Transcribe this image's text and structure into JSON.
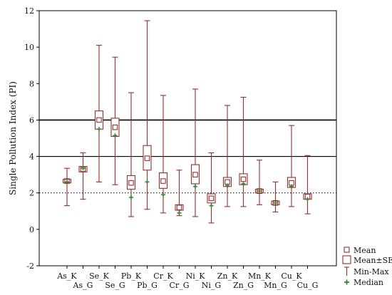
{
  "chart_data": {
    "type": "boxplot",
    "title": "",
    "xlabel": "",
    "ylabel": "Single Pollution Index (PI)",
    "ylim": [
      -2,
      12
    ],
    "yticks": [
      "-2",
      "0",
      "2",
      "4",
      "6",
      "8",
      "10",
      "12"
    ],
    "yticks_values": [
      -2,
      0,
      2,
      4,
      6,
      8,
      10,
      12
    ],
    "grid": false,
    "legend_position": "bottom-right",
    "reference_lines": [
      {
        "value": 2,
        "style": "dotted"
      },
      {
        "value": 4,
        "style": "solid"
      },
      {
        "value": 6,
        "style": "solid-bold"
      }
    ],
    "categories": [
      "As_K",
      "As_G",
      "Se_K",
      "Se_G",
      "Pb_K",
      "Pb_G",
      "Cr_K",
      "Cr_G",
      "Ni_K",
      "Ni_G",
      "Zn_K",
      "Zn_G",
      "Mn_K",
      "Mn_G",
      "Cu_K",
      "Cu_G"
    ],
    "mean": [
      2.65,
      3.3,
      6.0,
      5.6,
      2.55,
      3.9,
      2.65,
      1.2,
      3.0,
      1.7,
      2.6,
      2.75,
      2.1,
      1.45,
      2.55,
      1.8
    ],
    "se_low": [
      2.55,
      3.15,
      5.5,
      5.1,
      2.2,
      3.25,
      2.25,
      1.05,
      2.5,
      1.45,
      2.35,
      2.45,
      2.0,
      1.35,
      2.3,
      1.65
    ],
    "se_high": [
      2.75,
      3.45,
      6.5,
      6.1,
      2.95,
      4.6,
      3.1,
      1.35,
      3.55,
      1.95,
      2.85,
      3.05,
      2.2,
      1.55,
      2.85,
      1.95
    ],
    "min": [
      1.3,
      1.65,
      2.6,
      2.45,
      0.7,
      1.1,
      0.9,
      0.75,
      0.7,
      0.35,
      1.25,
      1.25,
      1.35,
      0.95,
      1.25,
      0.85
    ],
    "max": [
      3.35,
      4.2,
      10.1,
      9.45,
      7.5,
      11.45,
      7.35,
      3.25,
      7.7,
      4.2,
      6.8,
      7.25,
      3.8,
      2.6,
      5.7,
      4.05
    ],
    "median": [
      2.6,
      3.35,
      5.5,
      5.15,
      1.75,
      2.6,
      1.9,
      0.9,
      2.35,
      1.3,
      2.4,
      2.5,
      2.1,
      1.45,
      2.35,
      1.65
    ],
    "legend": [
      {
        "label": "Mean",
        "symbol": "square"
      },
      {
        "label": "Mean±SE",
        "symbol": "box"
      },
      {
        "label": "Min-Max",
        "symbol": "whisker"
      },
      {
        "label": "Median",
        "symbol": "plus"
      }
    ],
    "colors": {
      "box": "#a02c2c",
      "median": "#2e8b2e",
      "axis": "#000000"
    }
  }
}
